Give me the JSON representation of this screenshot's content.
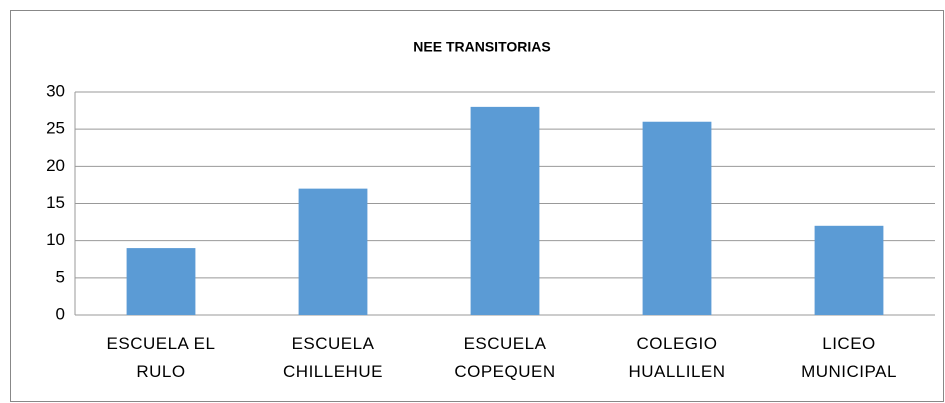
{
  "chart_data": {
    "type": "bar",
    "title": "NEE TRANSITORIAS",
    "categories": [
      "ESCUELA EL RULO",
      "ESCUELA CHILLEHUE",
      "ESCUELA COPEQUEN",
      "COLEGIO HUALLILEN",
      "LICEO MUNICIPAL"
    ],
    "values": [
      9,
      17,
      28,
      26,
      12
    ],
    "color": "#5b9bd5",
    "ylim": [
      0,
      30
    ],
    "yticks": [
      0,
      5,
      10,
      15,
      20,
      25,
      30
    ],
    "grid": true
  }
}
